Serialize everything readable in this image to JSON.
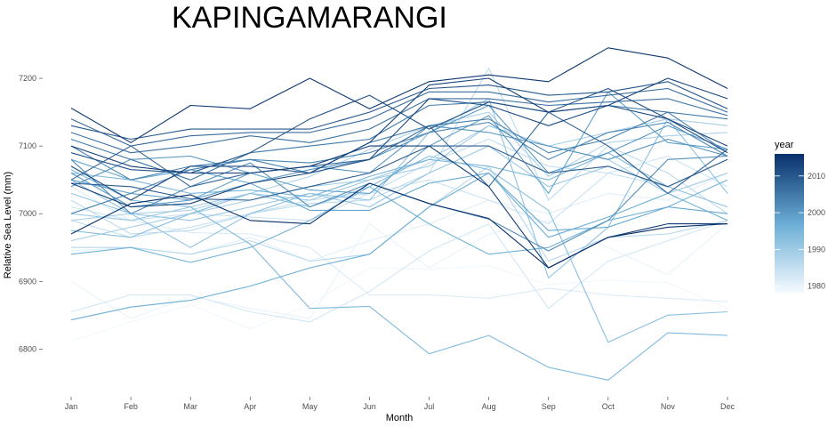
{
  "chart_data": {
    "type": "line",
    "title": "KAPINGAMARANGI",
    "xlabel": "Month",
    "ylabel": "Relative Sea Level (mm)",
    "categories": [
      "Jan",
      "Feb",
      "Mar",
      "Apr",
      "May",
      "Jun",
      "Jul",
      "Aug",
      "Sep",
      "Oct",
      "Nov",
      "Dec"
    ],
    "ylim": [
      6740,
      7250
    ],
    "yticks": [
      6800,
      6900,
      7000,
      7100,
      7200
    ],
    "grid": false,
    "legend": {
      "title": "year",
      "position": "right",
      "ticks": [
        1980,
        1990,
        2000,
        2010
      ],
      "range": [
        1978,
        2016
      ],
      "color_low": "#f7fbff",
      "color_high": "#08306b"
    },
    "series": [
      {
        "year": 1979,
        "values": [
          6812,
          6840,
          6865,
          6830,
          6865,
          6920,
          6918,
          6923,
          6895,
          6902,
          6898,
          6860
        ]
      },
      {
        "year": 1980,
        "values": [
          6900,
          6845,
          6878,
          6860,
          6845,
          6985,
          6920,
          6970,
          6990,
          6950,
          6910,
          6985
        ]
      },
      {
        "year": 1981,
        "values": [
          6945,
          6950,
          6940,
          6965,
          6930,
          6960,
          6985,
          7020,
          7000,
          7030,
          7020,
          7060
        ]
      },
      {
        "year": 1982,
        "values": [
          7040,
          6990,
          6972,
          6970,
          6950,
          6880,
          6880,
          6875,
          6890,
          6880,
          6875,
          6870
        ]
      },
      {
        "year": 1983,
        "values": [
          6855,
          6880,
          6880,
          6855,
          6840,
          6885,
          6945,
          6985,
          6860,
          6930,
          6960,
          6990
        ]
      },
      {
        "year": 1984,
        "values": [
          7010,
          6990,
          7000,
          6995,
          6990,
          7030,
          7050,
          7020,
          6985,
          7060,
          7085,
          7040
        ]
      },
      {
        "year": 1985,
        "values": [
          6990,
          6965,
          6980,
          7000,
          7020,
          7030,
          7075,
          7110,
          7070,
          7060,
          7040,
          7010
        ]
      },
      {
        "year": 1986,
        "values": [
          7020,
          6970,
          6975,
          7000,
          7015,
          7020,
          7060,
          7215,
          7020,
          7100,
          7060,
          7000
        ]
      },
      {
        "year": 1987,
        "values": [
          6950,
          6950,
          6940,
          6960,
          6930,
          6940,
          7010,
          7070,
          6930,
          6965,
          6970,
          6990
        ]
      },
      {
        "year": 1988,
        "values": [
          6990,
          7000,
          7005,
          7030,
          7055,
          7095,
          7130,
          7150,
          7055,
          7105,
          7115,
          7120
        ]
      },
      {
        "year": 1989,
        "values": [
          6960,
          6980,
          7000,
          7020,
          7040,
          7050,
          7080,
          7130,
          7100,
          7120,
          7140,
          7130
        ]
      },
      {
        "year": 1990,
        "values": [
          7000,
          6990,
          7010,
          7030,
          7020,
          7050,
          7070,
          7130,
          7100,
          7080,
          7030,
          7060
        ]
      },
      {
        "year": 1991,
        "values": [
          7030,
          7000,
          6990,
          7010,
          7030,
          7010,
          7060,
          7100,
          7040,
          7070,
          7040,
          7010
        ]
      },
      {
        "year": 1992,
        "values": [
          7050,
          7000,
          6950,
          7000,
          7030,
          7020,
          7120,
          7170,
          6905,
          6980,
          7140,
          7030
        ]
      },
      {
        "year": 1993,
        "values": [
          6975,
          6965,
          7000,
          7030,
          7010,
          7040,
          7085,
          7065,
          7005,
          6810,
          6850,
          6855
        ]
      },
      {
        "year": 1994,
        "values": [
          7065,
          7020,
          7010,
          6955,
          6860,
          6863,
          6793,
          6820,
          6773,
          6754,
          6824,
          6820
        ]
      },
      {
        "year": 1995,
        "values": [
          7060,
          7050,
          7030,
          7035,
          7025,
          7055,
          7080,
          7070,
          7050,
          7090,
          7040,
          7080
        ]
      },
      {
        "year": 1996,
        "values": [
          6940,
          6950,
          6928,
          6950,
          6990,
          7040,
          6985,
          6940,
          6950,
          6990,
          7010,
          7050
        ]
      },
      {
        "year": 1997,
        "values": [
          6843,
          6862,
          6872,
          6893,
          6920,
          6940,
          7010,
          7060,
          6965,
          6995,
          7030,
          6990
        ]
      },
      {
        "year": 1998,
        "values": [
          7080,
          7050,
          7065,
          7045,
          7005,
          7005,
          7045,
          7060,
          6975,
          6980,
          7010,
          7000
        ]
      },
      {
        "year": 1999,
        "values": [
          7050,
          7030,
          7020,
          7060,
          7035,
          7030,
          7100,
          7145,
          7030,
          7180,
          7105,
          7095
        ]
      },
      {
        "year": 2000,
        "values": [
          7060,
          7010,
          7020,
          7045,
          7065,
          7080,
          7120,
          7160,
          7060,
          7090,
          7130,
          7095
        ]
      },
      {
        "year": 2001,
        "values": [
          7040,
          7080,
          7085,
          7060,
          7070,
          7060,
          7130,
          7120,
          7100,
          7080,
          7110,
          7085
        ]
      },
      {
        "year": 2002,
        "values": [
          7080,
          7000,
          7040,
          7075,
          7010,
          7045,
          7015,
          6992,
          6945,
          6990,
          7080,
          7085
        ]
      },
      {
        "year": 2003,
        "values": [
          7100,
          7050,
          7070,
          7080,
          7075,
          7090,
          7120,
          7135,
          7080,
          7120,
          7135,
          7085
        ]
      },
      {
        "year": 2004,
        "values": [
          7000,
          7030,
          7065,
          7080,
          7060,
          7105,
          7130,
          7140,
          7090,
          7110,
          7150,
          7090
        ]
      },
      {
        "year": 2005,
        "values": [
          7110,
          7080,
          7050,
          7090,
          7100,
          7110,
          7160,
          7165,
          7150,
          7160,
          7150,
          7140
        ]
      },
      {
        "year": 2006,
        "values": [
          7120,
          7090,
          7100,
          7115,
          7105,
          7125,
          7170,
          7170,
          7160,
          7165,
          7170,
          7145
        ]
      },
      {
        "year": 2007,
        "values": [
          7140,
          7100,
          7115,
          7120,
          7120,
          7140,
          7180,
          7180,
          7165,
          7175,
          7185,
          7150
        ]
      },
      {
        "year": 2008,
        "values": [
          7050,
          7100,
          7040,
          7060,
          7070,
          7080,
          7130,
          7040,
          7150,
          7100,
          7030,
          7095
        ]
      },
      {
        "year": 2009,
        "values": [
          7045,
          7040,
          7022,
          7020,
          7040,
          7060,
          7100,
          7100,
          7060,
          7070,
          7040,
          7080
        ]
      },
      {
        "year": 2010,
        "values": [
          7130,
          7110,
          7125,
          7125,
          7125,
          7150,
          7185,
          7190,
          7175,
          7180,
          7195,
          7155
        ]
      },
      {
        "year": 2011,
        "values": [
          7090,
          7065,
          7060,
          7090,
          7140,
          7175,
          7125,
          7165,
          7150,
          7185,
          7140,
          7090
        ]
      },
      {
        "year": 2012,
        "values": [
          7070,
          7020,
          7070,
          7070,
          7060,
          7080,
          7170,
          7160,
          7130,
          7160,
          7140,
          7100
        ]
      },
      {
        "year": 2013,
        "values": [
          7045,
          7010,
          7015,
          7045,
          7060,
          7105,
          7190,
          7200,
          7150,
          7160,
          7200,
          7170
        ]
      },
      {
        "year": 2014,
        "values": [
          7100,
          7070,
          7060,
          7060,
          7070,
          7100,
          7100,
          7040,
          6920,
          6965,
          6985,
          6985
        ]
      },
      {
        "year": 2015,
        "values": [
          7156,
          7105,
          7160,
          7155,
          7200,
          7155,
          7195,
          7205,
          7195,
          7245,
          7230,
          7185
        ]
      },
      {
        "year": 2016,
        "values": [
          6970,
          7015,
          7028,
          6990,
          6985,
          7045,
          7015,
          6993,
          6920,
          6965,
          6980,
          6985
        ]
      }
    ]
  }
}
